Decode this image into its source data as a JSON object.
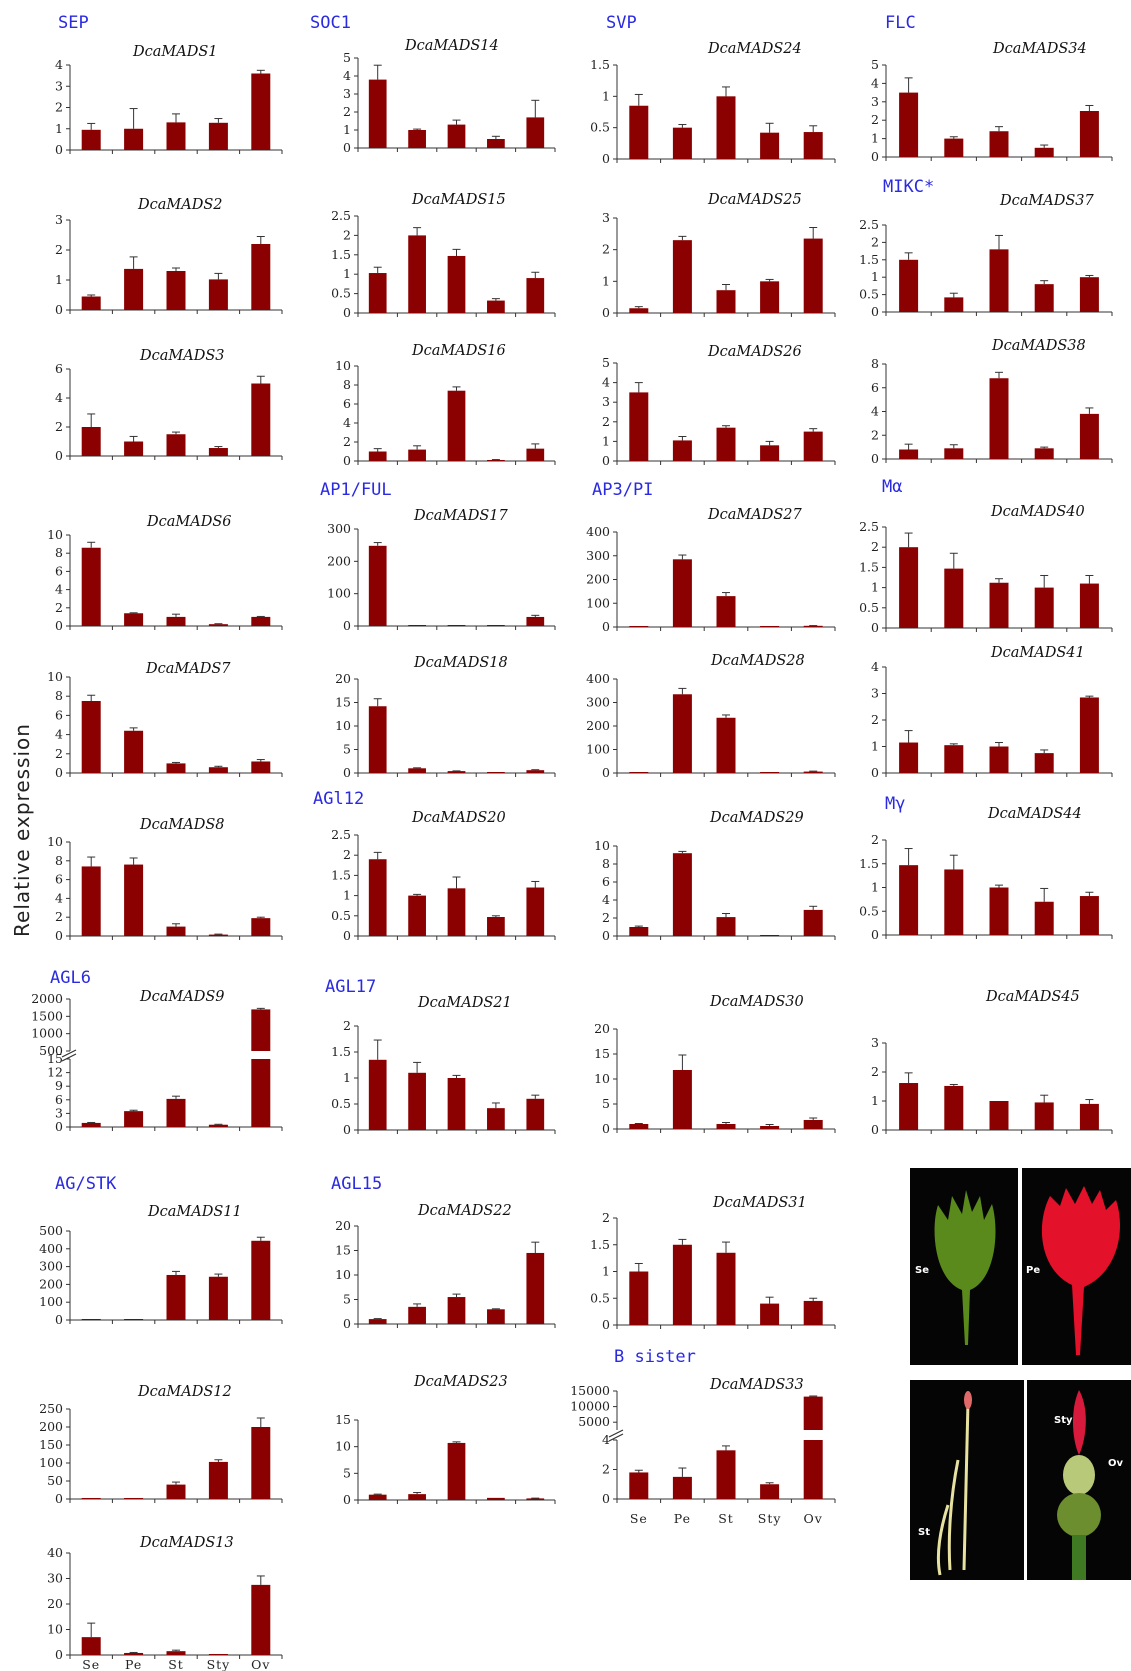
{
  "ylabel": "Relative expression",
  "categories": [
    "Se",
    "Pe",
    "St",
    "Sty",
    "Ov"
  ],
  "families": [
    "SEP",
    "SOC1",
    "SVP",
    "FLC",
    "MIKC*",
    "AP1/FUL",
    "AP3/PI",
    "Mα",
    "AGl12",
    "Mγ",
    "AGL6",
    "AGL17",
    "AG/STK",
    "AGL15",
    "B sister"
  ],
  "photos": [
    {
      "label": "Se",
      "color": "#5a8a1c"
    },
    {
      "label": "Pe",
      "color": "#e3112a"
    },
    {
      "label": "St",
      "color": "#e8e2a0"
    },
    {
      "label": "Sty",
      "color": "#d81b3c"
    },
    {
      "label": "Ov",
      "color": "#6c8e2e"
    }
  ],
  "chart_data": [
    {
      "type": "bar",
      "title": "DcaMADS1",
      "ylim": [
        0,
        4
      ],
      "yticks": [
        "0",
        "1",
        "2",
        "3",
        "4"
      ],
      "values": [
        0.95,
        1.0,
        1.3,
        1.28,
        3.6
      ],
      "errors": [
        0.3,
        0.95,
        0.4,
        0.2,
        0.15
      ]
    },
    {
      "type": "bar",
      "title": "DcaMADS14",
      "ylim": [
        0,
        5
      ],
      "yticks": [
        "0",
        "1",
        "2",
        "3",
        "4",
        "5"
      ],
      "values": [
        3.8,
        1.0,
        1.3,
        0.5,
        1.7
      ],
      "errors": [
        0.8,
        0.05,
        0.25,
        0.15,
        0.95
      ]
    },
    {
      "type": "bar",
      "title": "DcaMADS24",
      "ylim": [
        0,
        1.5
      ],
      "yticks": [
        "0",
        "0.5",
        "1",
        "1.5"
      ],
      "values": [
        0.85,
        0.5,
        1.0,
        0.42,
        0.43
      ],
      "errors": [
        0.18,
        0.05,
        0.15,
        0.15,
        0.1
      ]
    },
    {
      "type": "bar",
      "title": "DcaMADS34",
      "ylim": [
        0,
        5
      ],
      "yticks": [
        "0",
        "1",
        "2",
        "3",
        "4",
        "5"
      ],
      "values": [
        3.5,
        1.0,
        1.4,
        0.5,
        2.5
      ],
      "errors": [
        0.8,
        0.1,
        0.25,
        0.15,
        0.3
      ]
    },
    {
      "type": "bar",
      "title": "DcaMADS2",
      "ylim": [
        0,
        3
      ],
      "yticks": [
        "0",
        "1",
        "2",
        "3"
      ],
      "values": [
        0.45,
        1.37,
        1.3,
        1.02,
        2.2
      ],
      "errors": [
        0.05,
        0.4,
        0.1,
        0.2,
        0.25
      ]
    },
    {
      "type": "bar",
      "title": "DcaMADS15",
      "ylim": [
        0,
        2.5
      ],
      "yticks": [
        "0",
        "0.5",
        "1",
        "1.5",
        "2",
        "2.5"
      ],
      "values": [
        1.03,
        2.0,
        1.47,
        0.32,
        0.9
      ],
      "errors": [
        0.15,
        0.2,
        0.17,
        0.05,
        0.15
      ]
    },
    {
      "type": "bar",
      "title": "DcaMADS25",
      "ylim": [
        0,
        3
      ],
      "yticks": [
        "0",
        "1",
        "2",
        "3"
      ],
      "values": [
        0.15,
        2.3,
        0.72,
        1.0,
        2.35
      ],
      "errors": [
        0.05,
        0.12,
        0.18,
        0.06,
        0.35
      ]
    },
    {
      "type": "bar",
      "title": "DcaMADS37",
      "ylim": [
        0,
        2.5
      ],
      "yticks": [
        "0",
        "0.5",
        "1",
        "1.5",
        "2",
        "2.5"
      ],
      "values": [
        1.5,
        0.42,
        1.8,
        0.8,
        1.0
      ],
      "errors": [
        0.2,
        0.12,
        0.4,
        0.1,
        0.05
      ]
    },
    {
      "type": "bar",
      "title": "DcaMADS3",
      "ylim": [
        0,
        6
      ],
      "yticks": [
        "0",
        "2",
        "4",
        "6"
      ],
      "values": [
        2.0,
        1.0,
        1.5,
        0.55,
        5.0
      ],
      "errors": [
        0.9,
        0.35,
        0.15,
        0.1,
        0.5
      ]
    },
    {
      "type": "bar",
      "title": "DcaMADS16",
      "ylim": [
        0,
        10
      ],
      "yticks": [
        "0",
        "2",
        "4",
        "6",
        "8",
        "10"
      ],
      "values": [
        1.0,
        1.2,
        7.4,
        0.1,
        1.3
      ],
      "errors": [
        0.3,
        0.4,
        0.4,
        0.05,
        0.5
      ]
    },
    {
      "type": "bar",
      "title": "DcaMADS26",
      "ylim": [
        0,
        5
      ],
      "yticks": [
        "0",
        "1",
        "2",
        "3",
        "4",
        "5"
      ],
      "values": [
        3.5,
        1.05,
        1.7,
        0.8,
        1.5
      ],
      "errors": [
        0.5,
        0.2,
        0.1,
        0.2,
        0.15
      ]
    },
    {
      "type": "bar",
      "title": "DcaMADS38",
      "ylim": [
        0,
        8
      ],
      "yticks": [
        "0",
        "2",
        "4",
        "6",
        "8"
      ],
      "values": [
        0.8,
        0.9,
        6.8,
        0.9,
        3.8
      ],
      "errors": [
        0.45,
        0.3,
        0.5,
        0.1,
        0.5
      ]
    },
    {
      "type": "bar",
      "title": "DcaMADS6",
      "ylim": [
        0,
        10
      ],
      "yticks": [
        "0",
        "2",
        "4",
        "6",
        "8",
        "10"
      ],
      "values": [
        8.6,
        1.4,
        1.0,
        0.2,
        1.0
      ],
      "errors": [
        0.6,
        0.05,
        0.3,
        0.05,
        0.05
      ]
    },
    {
      "type": "bar",
      "title": "DcaMADS17",
      "ylim": [
        0,
        300
      ],
      "yticks": [
        "0",
        "100",
        "200",
        "300"
      ],
      "values": [
        248,
        1,
        1,
        1,
        28
      ],
      "errors": [
        10,
        0,
        0,
        0,
        5
      ]
    },
    {
      "type": "bar",
      "title": "DcaMADS27",
      "ylim": [
        0,
        400
      ],
      "yticks": [
        "0",
        "100",
        "200",
        "300",
        "400"
      ],
      "values": [
        2,
        285,
        130,
        2,
        5
      ],
      "errors": [
        0,
        18,
        15,
        0,
        1
      ]
    },
    {
      "type": "bar",
      "title": "DcaMADS40",
      "ylim": [
        0,
        2.5
      ],
      "yticks": [
        "0",
        "0.5",
        "1",
        "1.5",
        "2",
        "2.5"
      ],
      "values": [
        2.0,
        1.47,
        1.12,
        1.0,
        1.1
      ],
      "errors": [
        0.35,
        0.38,
        0.1,
        0.3,
        0.2
      ]
    },
    {
      "type": "bar",
      "title": "DcaMADS7",
      "ylim": [
        0,
        10
      ],
      "yticks": [
        "0",
        "2",
        "4",
        "6",
        "8",
        "10"
      ],
      "values": [
        7.5,
        4.4,
        1.0,
        0.6,
        1.2
      ],
      "errors": [
        0.6,
        0.3,
        0.1,
        0.1,
        0.2
      ]
    },
    {
      "type": "bar",
      "title": "DcaMADS18",
      "ylim": [
        0,
        20
      ],
      "yticks": [
        "0",
        "5",
        "10",
        "15",
        "20"
      ],
      "values": [
        14.2,
        1.0,
        0.4,
        0.1,
        0.6
      ],
      "errors": [
        1.6,
        0.1,
        0.05,
        0,
        0.1
      ]
    },
    {
      "type": "bar",
      "title": "DcaMADS28",
      "ylim": [
        0,
        400
      ],
      "yticks": [
        "0",
        "100",
        "200",
        "300",
        "400"
      ],
      "values": [
        2,
        335,
        235,
        2,
        6
      ],
      "errors": [
        0,
        25,
        12,
        0,
        2
      ]
    },
    {
      "type": "bar",
      "title": "DcaMADS41",
      "ylim": [
        0,
        4
      ],
      "yticks": [
        "0",
        "1",
        "2",
        "3",
        "4"
      ],
      "values": [
        1.15,
        1.05,
        1.0,
        0.75,
        2.85
      ],
      "errors": [
        0.45,
        0.05,
        0.15,
        0.12,
        0.05
      ]
    },
    {
      "type": "bar",
      "title": "DcaMADS8",
      "ylim": [
        0,
        10
      ],
      "yticks": [
        "0",
        "2",
        "4",
        "6",
        "8",
        "10"
      ],
      "values": [
        7.4,
        7.6,
        1.0,
        0.15,
        1.9
      ],
      "errors": [
        1.0,
        0.7,
        0.3,
        0.05,
        0.1
      ]
    },
    {
      "type": "bar",
      "title": "DcaMADS20",
      "ylim": [
        0,
        2.5
      ],
      "yticks": [
        "0",
        "0.5",
        "1",
        "1.5",
        "2",
        "2.5"
      ],
      "values": [
        1.9,
        1.0,
        1.18,
        0.47,
        1.2
      ],
      "errors": [
        0.17,
        0.03,
        0.28,
        0.03,
        0.15
      ]
    },
    {
      "type": "bar",
      "title": "DcaMADS29",
      "ylim": [
        0,
        10
      ],
      "yticks": [
        "0",
        "2",
        "4",
        "6",
        "8",
        "10"
      ],
      "values": [
        1.0,
        9.2,
        2.1,
        0.1,
        2.9
      ],
      "errors": [
        0.1,
        0.2,
        0.4,
        0,
        0.4
      ]
    },
    {
      "type": "bar",
      "title": "DcaMADS44",
      "ylim": [
        0,
        2
      ],
      "yticks": [
        "0",
        "0.5",
        "1",
        "1.5",
        "2"
      ],
      "values": [
        1.47,
        1.38,
        1.0,
        0.7,
        0.82
      ],
      "errors": [
        0.35,
        0.3,
        0.05,
        0.28,
        0.08
      ]
    },
    {
      "type": "bar",
      "title": "DcaMADS9",
      "broken": true,
      "ylim": [
        0,
        15
      ],
      "ylim_upper": [
        500,
        2000
      ],
      "yticks": [
        "0",
        "3",
        "6",
        "9",
        "12",
        "15"
      ],
      "yticks_upper": [
        "500",
        "1000",
        "1500",
        "2000"
      ],
      "values": [
        0.9,
        3.5,
        6.2,
        0.5,
        1700
      ],
      "errors": [
        0.1,
        0.2,
        0.6,
        0.1,
        30
      ]
    },
    {
      "type": "bar",
      "title": "DcaMADS21",
      "ylim": [
        0,
        2
      ],
      "yticks": [
        "0",
        "0.5",
        "1",
        "1.5",
        "2"
      ],
      "values": [
        1.35,
        1.1,
        1.0,
        0.42,
        0.6
      ],
      "errors": [
        0.38,
        0.2,
        0.05,
        0.1,
        0.07
      ]
    },
    {
      "type": "bar",
      "title": "DcaMADS30",
      "ylim": [
        0,
        20
      ],
      "yticks": [
        "0",
        "5",
        "10",
        "15",
        "20"
      ],
      "values": [
        1.0,
        11.8,
        1.0,
        0.6,
        1.8
      ],
      "errors": [
        0.1,
        3.0,
        0.3,
        0.3,
        0.4
      ]
    },
    {
      "type": "bar",
      "title": "DcaMADS45",
      "ylim": [
        0,
        3
      ],
      "yticks": [
        "0",
        "1",
        "2",
        "3"
      ],
      "values": [
        1.62,
        1.52,
        1.0,
        0.95,
        0.9
      ],
      "errors": [
        0.35,
        0.05,
        0,
        0.25,
        0.15
      ]
    },
    {
      "type": "bar",
      "title": "DcaMADS11",
      "ylim": [
        0,
        500
      ],
      "yticks": [
        "0",
        "100",
        "200",
        "300",
        "400",
        "500"
      ],
      "values": [
        2,
        2,
        253,
        243,
        445
      ],
      "errors": [
        0,
        0,
        20,
        15,
        20
      ]
    },
    {
      "type": "bar",
      "title": "DcaMADS22",
      "ylim": [
        0,
        20
      ],
      "yticks": [
        "0",
        "5",
        "10",
        "15",
        "20"
      ],
      "values": [
        1.0,
        3.5,
        5.5,
        3.0,
        14.5
      ],
      "errors": [
        0.1,
        0.6,
        0.6,
        0.1,
        2.2
      ]
    },
    {
      "type": "bar",
      "title": "DcaMADS31",
      "ylim": [
        0,
        2
      ],
      "yticks": [
        "0",
        "0.5",
        "1",
        "1.5",
        "2"
      ],
      "values": [
        1.0,
        1.5,
        1.35,
        0.4,
        0.45
      ],
      "errors": [
        0.15,
        0.1,
        0.2,
        0.12,
        0.05
      ]
    },
    {
      "type": "bar",
      "title": "DcaMADS12",
      "ylim": [
        0,
        250
      ],
      "yticks": [
        "0",
        "50",
        "100",
        "150",
        "200",
        "250"
      ],
      "values": [
        1,
        1,
        40,
        103,
        200
      ],
      "errors": [
        0,
        0,
        7,
        6,
        25
      ]
    },
    {
      "type": "bar",
      "title": "DcaMADS23",
      "ylim": [
        0,
        15
      ],
      "yticks": [
        "0",
        "5",
        "10",
        "15"
      ],
      "values": [
        1.0,
        1.1,
        10.7,
        0.4,
        0.3
      ],
      "errors": [
        0.1,
        0.3,
        0.2,
        0,
        0.05
      ]
    },
    {
      "type": "bar",
      "title": "DcaMADS33",
      "broken": true,
      "ylim": [
        0,
        4
      ],
      "ylim_upper": [
        2500,
        15000
      ],
      "yticks": [
        "0",
        "2",
        "4"
      ],
      "yticks_upper": [
        "5000",
        "10000",
        "15000"
      ],
      "values": [
        1.8,
        1.5,
        3.3,
        1.0,
        13200
      ],
      "errors": [
        0.15,
        0.6,
        0.3,
        0.1,
        200
      ]
    },
    {
      "type": "bar",
      "title": "DcaMADS13",
      "ylim": [
        0,
        40
      ],
      "yticks": [
        "0",
        "10",
        "20",
        "30",
        "40"
      ],
      "values": [
        7.0,
        0.8,
        1.5,
        0.3,
        27.5
      ],
      "errors": [
        5.5,
        0.2,
        0.4,
        0,
        3.5
      ]
    }
  ]
}
